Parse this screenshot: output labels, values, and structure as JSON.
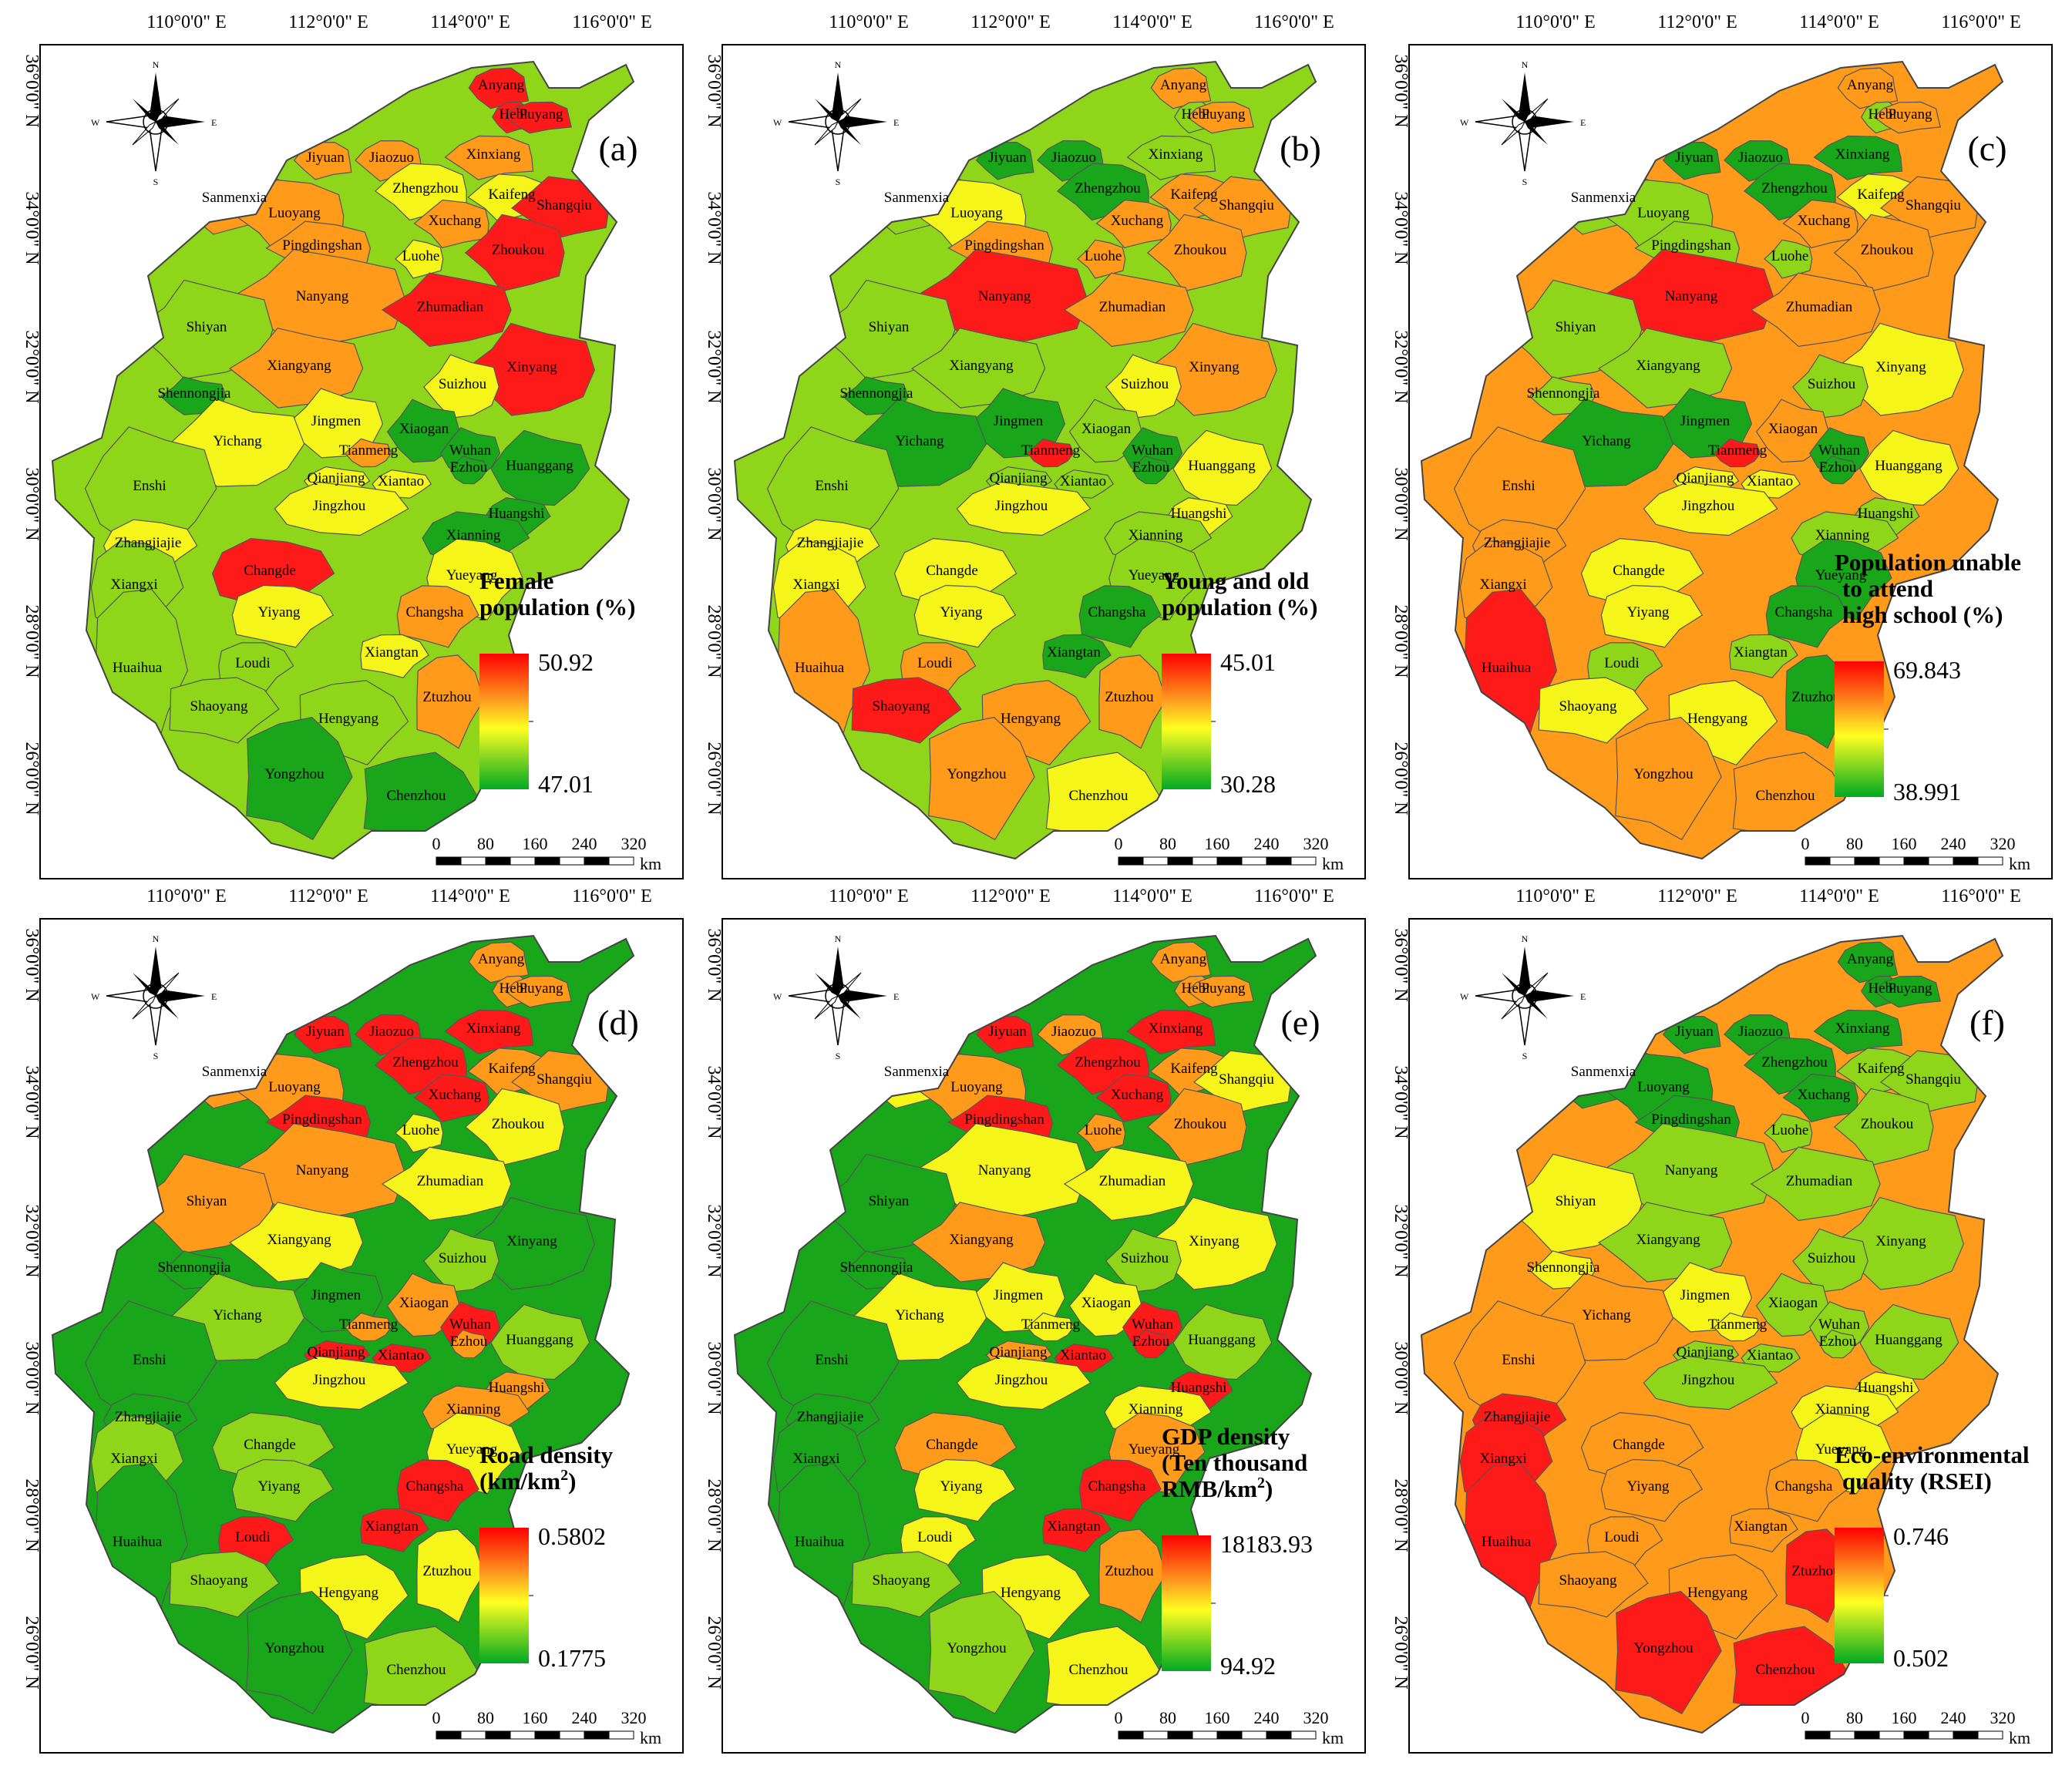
{
  "figure_title": "",
  "longitudes": [
    "110°0'0\" E",
    "112°0'0\" E",
    "114°0'0\" E",
    "116°0'0\" E"
  ],
  "latitudes": [
    "36°0'0\" N",
    "34°0'0\" N",
    "32°0'0\" N",
    "30°0'0\" N",
    "28°0'0\" N",
    "26°0'0\" N"
  ],
  "compass": {
    "n": "N",
    "s": "S",
    "e": "E",
    "w": "W"
  },
  "scale_bar": {
    "ticks": [
      "0",
      "80",
      "160",
      "240",
      "320"
    ],
    "unit": "km"
  },
  "colors": {
    "high": "#ff1a1a",
    "mid_high": "#ff9a1a",
    "mid": "#f5f51a",
    "mid_low": "#8fd61a",
    "low": "#1aa61a"
  },
  "cities": [
    {
      "name": "Anyang"
    },
    {
      "name": "Hebi"
    },
    {
      "name": "Puyang"
    },
    {
      "name": "Jiyuan"
    },
    {
      "name": "Jiaozuo"
    },
    {
      "name": "Xinxiang"
    },
    {
      "name": "Sanmenxia"
    },
    {
      "name": "Zhengzhou"
    },
    {
      "name": "Kaifeng"
    },
    {
      "name": "Luoyang"
    },
    {
      "name": "Xuchang"
    },
    {
      "name": "Shangqiu"
    },
    {
      "name": "Pingdingshan"
    },
    {
      "name": "Luohe"
    },
    {
      "name": "Zhoukou"
    },
    {
      "name": "Nanyang"
    },
    {
      "name": "Zhumadian"
    },
    {
      "name": "Shiyan"
    },
    {
      "name": "Xiangyang"
    },
    {
      "name": "Xinyang"
    },
    {
      "name": "Suizhou"
    },
    {
      "name": "Shennongjia"
    },
    {
      "name": "Jingmen"
    },
    {
      "name": "Xiaogan"
    },
    {
      "name": "Yichang"
    },
    {
      "name": "Tianmeng"
    },
    {
      "name": "Wuhan"
    },
    {
      "name": "Ezhou"
    },
    {
      "name": "Huanggang"
    },
    {
      "name": "Enshi"
    },
    {
      "name": "Qianjiang"
    },
    {
      "name": "Xiantao"
    },
    {
      "name": "Jingzhou"
    },
    {
      "name": "Huangshi"
    },
    {
      "name": "Xianning"
    },
    {
      "name": "Zhangjiajie"
    },
    {
      "name": "Changde"
    },
    {
      "name": "Yueyang"
    },
    {
      "name": "Xiangxi"
    },
    {
      "name": "Yiyang"
    },
    {
      "name": "Changsha"
    },
    {
      "name": "Loudi"
    },
    {
      "name": "Xiangtan"
    },
    {
      "name": "Huaihua"
    },
    {
      "name": "Ztuzhou"
    },
    {
      "name": "Shaoyang"
    },
    {
      "name": "Hengyang"
    },
    {
      "name": "Yongzhou"
    },
    {
      "name": "Chenzhou"
    }
  ],
  "panels": [
    {
      "label": "(a)",
      "legend_title": [
        "Female",
        "population (%)"
      ],
      "max": "50.92",
      "min": "47.01",
      "classes": [
        4,
        4,
        4,
        3,
        3,
        3,
        3,
        2,
        2,
        3,
        3,
        4,
        3,
        2,
        4,
        3,
        4,
        1,
        3,
        4,
        2,
        0,
        2,
        0,
        2,
        3,
        0,
        0,
        0,
        1,
        2,
        2,
        2,
        0,
        0,
        2,
        4,
        2,
        1,
        2,
        3,
        1,
        2,
        1,
        3,
        1,
        1,
        0,
        0
      ]
    },
    {
      "label": "(b)",
      "legend_title": [
        "Young and old",
        "population (%)"
      ],
      "max": "45.01",
      "min": "30.28",
      "classes": [
        3,
        1,
        3,
        0,
        0,
        1,
        1,
        0,
        3,
        2,
        3,
        3,
        3,
        3,
        3,
        4,
        3,
        1,
        1,
        3,
        2,
        0,
        0,
        1,
        0,
        4,
        0,
        0,
        2,
        1,
        1,
        1,
        2,
        2,
        1,
        2,
        2,
        1,
        2,
        2,
        0,
        3,
        0,
        3,
        3,
        4,
        3,
        3,
        2
      ]
    },
    {
      "label": "(c)",
      "legend_title": [
        "Population unable",
        "to attend",
        "high school (%)"
      ],
      "max": "69.843",
      "min": "38.991",
      "classes": [
        3,
        1,
        3,
        0,
        0,
        0,
        1,
        0,
        2,
        1,
        3,
        3,
        1,
        1,
        3,
        4,
        3,
        1,
        1,
        2,
        1,
        1,
        0,
        3,
        0,
        4,
        0,
        0,
        2,
        3,
        2,
        2,
        2,
        1,
        1,
        3,
        2,
        0,
        3,
        2,
        0,
        1,
        1,
        4,
        0,
        2,
        2,
        3,
        3
      ]
    },
    {
      "label": "(d)",
      "legend_title": [
        "Road density",
        "(km/km2)"
      ],
      "max": "0.5802",
      "min": "0.1775",
      "classes": [
        3,
        3,
        3,
        4,
        4,
        4,
        3,
        4,
        3,
        3,
        4,
        3,
        4,
        2,
        2,
        3,
        2,
        3,
        2,
        0,
        1,
        0,
        0,
        3,
        1,
        3,
        4,
        3,
        1,
        0,
        4,
        4,
        2,
        3,
        3,
        0,
        1,
        2,
        1,
        1,
        4,
        4,
        4,
        0,
        2,
        1,
        2,
        0,
        1
      ]
    },
    {
      "label": "(e)",
      "legend_title": [
        "GDP density",
        "(Ten thousand",
        "RMB/km2)"
      ],
      "max": "18183.93",
      "min": "94.92",
      "classes": [
        3,
        3,
        3,
        4,
        3,
        4,
        2,
        4,
        3,
        3,
        4,
        2,
        4,
        3,
        3,
        2,
        2,
        0,
        3,
        2,
        1,
        0,
        2,
        2,
        2,
        2,
        4,
        4,
        1,
        0,
        3,
        4,
        2,
        4,
        2,
        0,
        3,
        3,
        0,
        2,
        4,
        2,
        4,
        0,
        3,
        1,
        2,
        1,
        2
      ]
    },
    {
      "label": "(f)",
      "legend_title": [
        "Eco-environmental",
        "quality (RSEI)"
      ],
      "max": "0.746",
      "min": "0.502",
      "classes": [
        0,
        0,
        0,
        0,
        0,
        0,
        0,
        0,
        1,
        0,
        0,
        1,
        0,
        1,
        1,
        1,
        1,
        2,
        1,
        1,
        1,
        2,
        2,
        1,
        3,
        2,
        1,
        1,
        1,
        3,
        1,
        1,
        1,
        2,
        2,
        4,
        3,
        2,
        4,
        3,
        3,
        3,
        3,
        4,
        4,
        3,
        3,
        4,
        4
      ]
    }
  ]
}
